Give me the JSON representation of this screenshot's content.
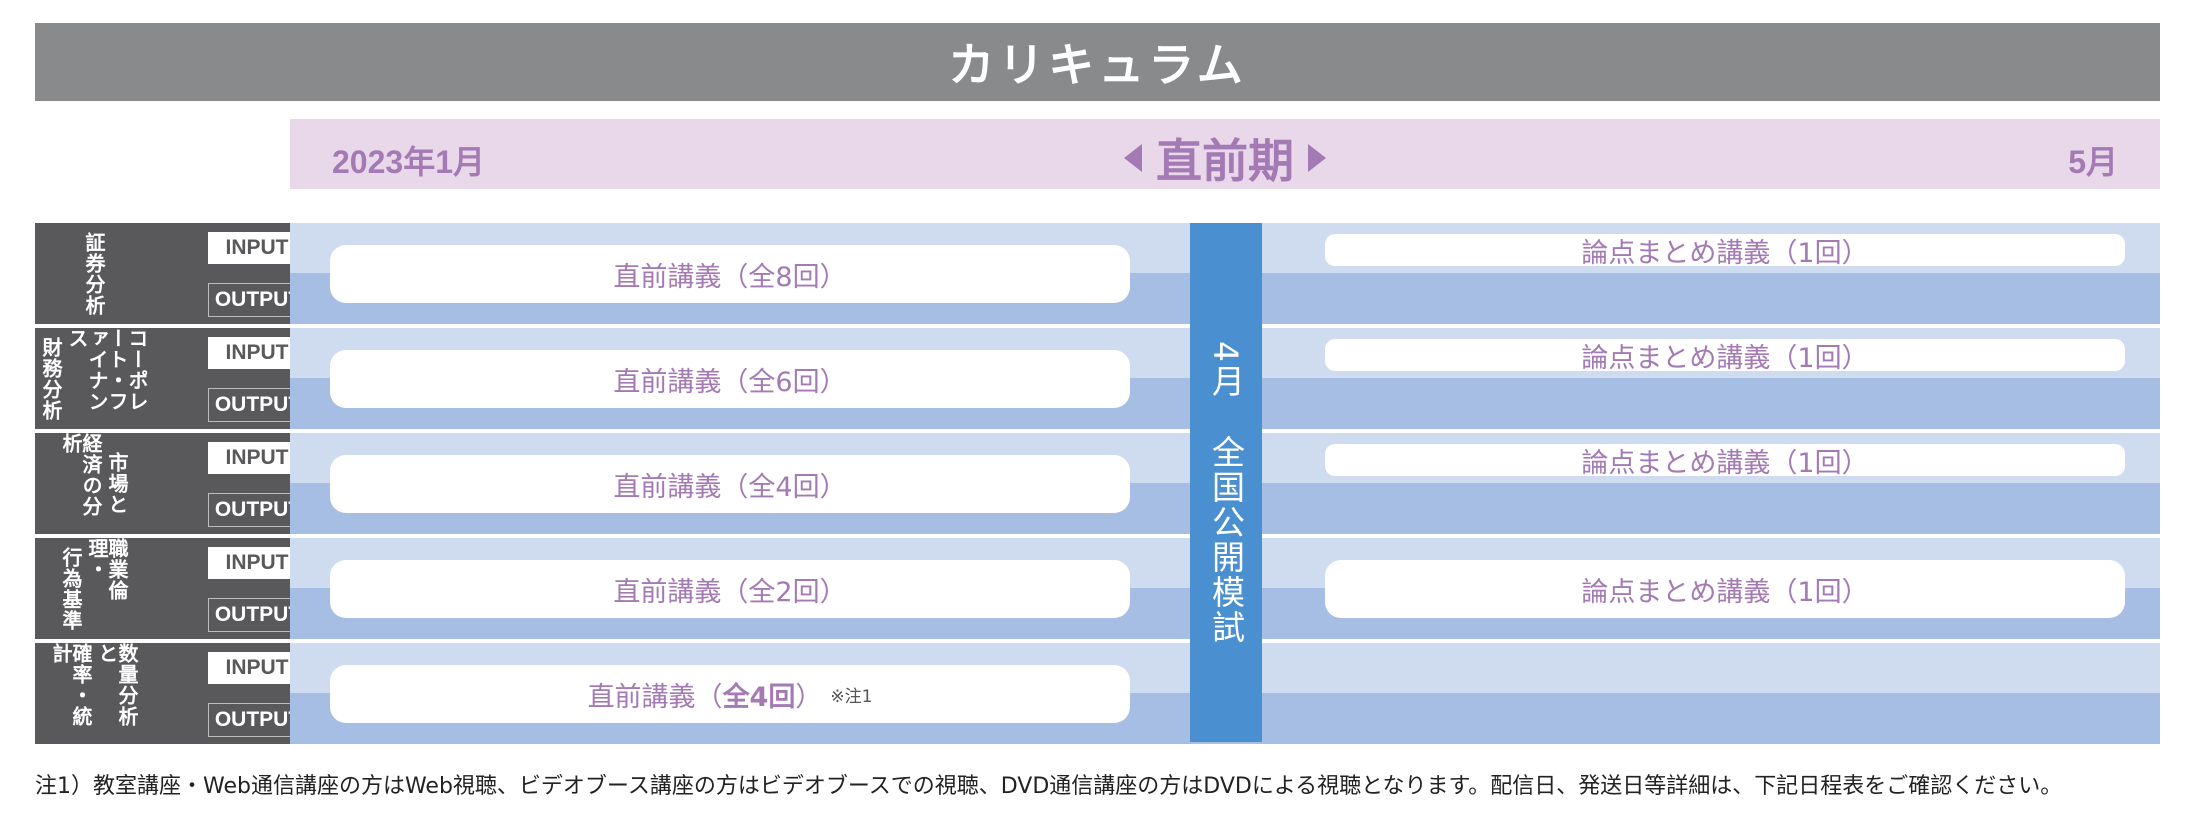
{
  "title": "カリキュラム",
  "period": {
    "start": "2023年1月",
    "center": "直前期",
    "end": "5月"
  },
  "tags": {
    "input": "INPUT",
    "output": "OUTPUT"
  },
  "subjects": [
    {
      "lines": [
        "証券分析"
      ],
      "left_course": "直前講義（全8回）",
      "right_course": "論点まとめ講義（1回）"
    },
    {
      "lines": [
        "コーポレート・ファイナンス",
        "財務分析"
      ],
      "left_course": "直前講義（全6回）",
      "right_course": "論点まとめ講義（1回）"
    },
    {
      "lines": [
        "市場と",
        "経済の分析"
      ],
      "left_course": "直前講義（全4回）",
      "right_course": "論点まとめ講義（1回）"
    },
    {
      "lines": [
        "職業倫理・",
        "行為基準"
      ],
      "left_course": "直前講義（全2回）",
      "right_course": "論点まとめ講義（1回）"
    },
    {
      "lines": [
        "数量分析と",
        "確率・統計"
      ],
      "left_course_prefix": "直前講義（",
      "left_course_bold": "全4回",
      "left_course_suffix": "）",
      "note": "※注1"
    }
  ],
  "mock_exam": {
    "month": "4月",
    "label": "全国公開模試"
  },
  "footnote": "注1）教室講座・Web通信講座の方はWeb視聴、ビデオブース講座の方はビデオブースでの視聴、DVD通信講座の方はDVDによる視聴となります。配信日、発送日等詳細は、下記日程表をご確認ください。",
  "colors": {
    "title_bg": "#898a8c",
    "period_bg": "#e8d8ea",
    "accent_purple": "#a47ab4",
    "band_light": "#cfdcf0",
    "band_dark": "#a6bee3",
    "mock_blue": "#4a8fcf",
    "subject_gray": "#59595b"
  }
}
